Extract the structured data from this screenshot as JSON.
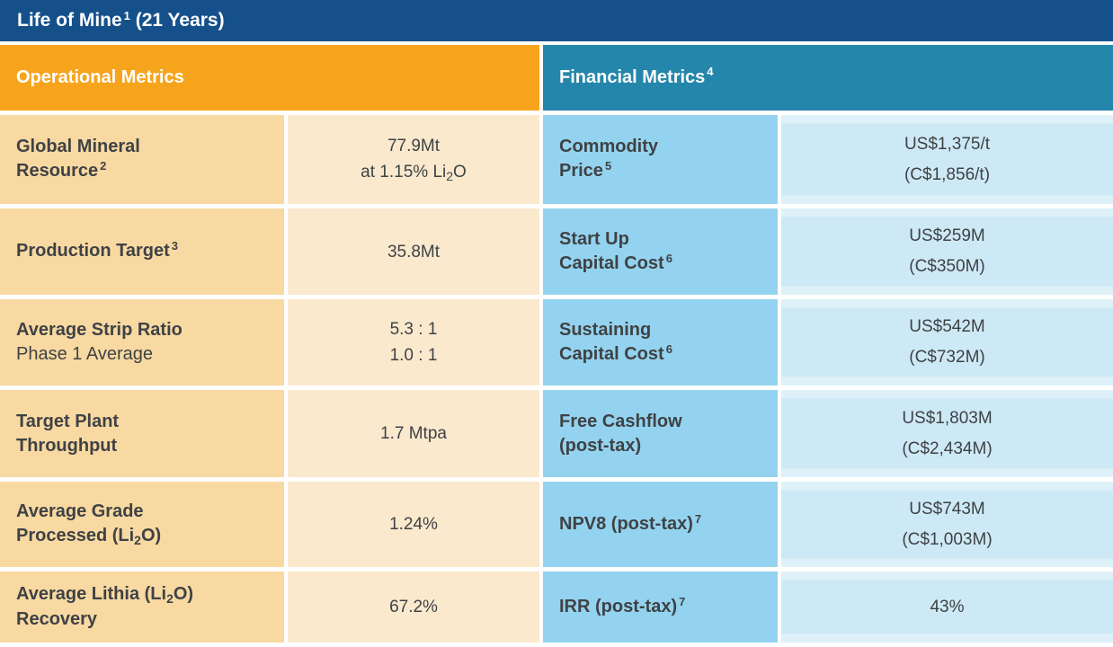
{
  "title": {
    "text": "Life of Mine",
    "sup": "1",
    "suffix": " (21 Years)"
  },
  "headers": {
    "operational": {
      "label": "Operational Metrics"
    },
    "financial": {
      "label": "Financial Metrics",
      "sup": "4"
    }
  },
  "colors": {
    "navy": "#15508b",
    "orange": "#f7a41d",
    "teal": "#2586ab",
    "tan_label": "#f8d9a2",
    "tan_value": "#fae9cd",
    "blue_label": "#94d3ef",
    "blue_value": "#cde9f6",
    "blue_value_light": "#def1f9",
    "text_dark": "#3f4245",
    "white": "#ffffff"
  },
  "rows": {
    "operational": [
      {
        "label": {
          "l1": "Global Mineral",
          "l2": "Resource",
          "l2sup": "2"
        },
        "value": {
          "l1": "77.9Mt",
          "l2pre": "at 1.15% Li",
          "l2sub": "2",
          "l2post": "O"
        }
      },
      {
        "label": {
          "l1": "Production Target",
          "l1sup": "3"
        },
        "value": {
          "l1": "35.8Mt"
        }
      },
      {
        "label": {
          "l1": "Average Strip Ratio",
          "l2light": "Phase 1 Average"
        },
        "value": {
          "l1": "5.3 : 1",
          "l2": "1.0 : 1"
        }
      },
      {
        "label": {
          "l1": "Target Plant",
          "l2": "Throughput"
        },
        "value": {
          "l1": "1.7 Mtpa"
        }
      },
      {
        "label": {
          "l1": "Average Grade",
          "l2pre": "Processed (Li",
          "l2sub": "2",
          "l2post": "O)"
        },
        "value": {
          "l1": "1.24%"
        }
      },
      {
        "label": {
          "l1pre": "Average Lithia (Li",
          "l1sub": "2",
          "l1post": "O)",
          "l2": "Recovery"
        },
        "value": {
          "l1": "67.2%"
        }
      }
    ],
    "financial": [
      {
        "label": {
          "l1": "Commodity",
          "l2": "Price",
          "l2sup": "5"
        },
        "value": {
          "l1": "US$1,375/t",
          "l2": "(C$1,856/t)"
        }
      },
      {
        "label": {
          "l1": "Start Up",
          "l2": "Capital Cost",
          "l2sup": "6"
        },
        "value": {
          "l1": "US$259M",
          "l2": "(C$350M)"
        }
      },
      {
        "label": {
          "l1": "Sustaining",
          "l2": "Capital Cost",
          "l2sup": "6"
        },
        "value": {
          "l1": "US$542M",
          "l2": "(C$732M)"
        }
      },
      {
        "label": {
          "l1": "Free Cashflow",
          "l2": "(post-tax)"
        },
        "value": {
          "l1": "US$1,803M",
          "l2": "(C$2,434M)"
        }
      },
      {
        "label": {
          "l1": "NPV8 (post-tax)",
          "l1sup": "7"
        },
        "value": {
          "l1": "US$743M",
          "l2": "(C$1,003M)"
        }
      },
      {
        "label": {
          "l1": "IRR (post-tax)",
          "l1sup": "7"
        },
        "value": {
          "l1": "43%"
        }
      }
    ]
  }
}
